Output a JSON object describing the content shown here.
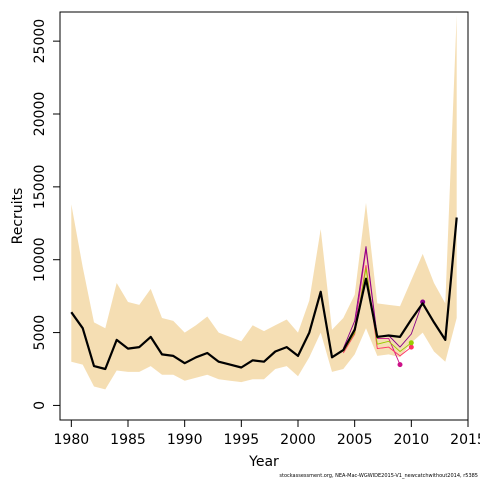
{
  "chart_data": {
    "type": "line",
    "xlabel": "Year",
    "ylabel": "Recruits",
    "xlim": [
      1979,
      2015
    ],
    "ylim": [
      -1000,
      27000
    ],
    "x_ticks": [
      1980,
      1985,
      1990,
      1995,
      2000,
      2005,
      2010,
      2015
    ],
    "y_ticks": [
      0,
      5000,
      10000,
      15000,
      20000,
      25000
    ],
    "x_tick_labels": [
      "1980",
      "1985",
      "1990",
      "1995",
      "2000",
      "2005",
      "2010",
      "2015"
    ],
    "y_tick_labels": [
      "0",
      "5000",
      "10000",
      "15000",
      "20000",
      "25000"
    ],
    "footnote": "stockassessment.org, NEA-Mac-WGWIDE2015-V1_newcatchwithout2014, r5385",
    "colors": {
      "band": "#F5DEB3",
      "main": "#000000",
      "retro1": "#CC1188",
      "retro2": "#880088",
      "retro3": "#FF3366",
      "retro4": "#99CC00",
      "axis": "#000000"
    },
    "band": {
      "x": [
        1980,
        1981,
        1982,
        1983,
        1984,
        1985,
        1986,
        1987,
        1988,
        1989,
        1990,
        1991,
        1992,
        1993,
        1994,
        1995,
        1996,
        1997,
        1998,
        1999,
        2000,
        2001,
        2002,
        2003,
        2004,
        2005,
        2006,
        2007,
        2008,
        2009,
        2010,
        2011,
        2012,
        2013,
        2014
      ],
      "lower": [
        3000,
        2800,
        1300,
        1100,
        2400,
        2300,
        2300,
        2700,
        2100,
        2100,
        1700,
        1900,
        2100,
        1800,
        1700,
        1600,
        1800,
        1800,
        2500,
        2700,
        2000,
        3300,
        5000,
        2300,
        2500,
        3500,
        5300,
        3400,
        3500,
        3300,
        4300,
        5000,
        3700,
        3000,
        6000
      ],
      "upper": [
        13800,
        9500,
        5700,
        5300,
        8400,
        7100,
        6900,
        8000,
        6000,
        5800,
        5000,
        5500,
        6100,
        5000,
        4700,
        4400,
        5500,
        5100,
        5500,
        5900,
        5000,
        7200,
        12100,
        5200,
        6000,
        7600,
        13900,
        7000,
        6900,
        6800,
        8600,
        10400,
        8400,
        7000,
        26800
      ]
    },
    "series": [
      {
        "role": "main",
        "x": [
          1980,
          1981,
          1982,
          1983,
          1984,
          1985,
          1986,
          1987,
          1988,
          1989,
          1990,
          1991,
          1992,
          1993,
          1994,
          1995,
          1996,
          1997,
          1998,
          1999,
          2000,
          2001,
          2002,
          2003,
          2004,
          2005,
          2006,
          2007,
          2008,
          2009,
          2010,
          2011,
          2012,
          2013,
          2014
        ],
        "values": [
          6400,
          5300,
          2700,
          2500,
          4500,
          3900,
          4000,
          4700,
          3500,
          3400,
          2900,
          3300,
          3600,
          3000,
          2800,
          2600,
          3100,
          3000,
          3700,
          4000,
          3400,
          5000,
          7800,
          3300,
          3800,
          5200,
          8700,
          4700,
          4800,
          4700,
          5900,
          7000,
          5700,
          4500,
          12900
        ]
      },
      {
        "role": "retro1",
        "x": [
          2004,
          2005,
          2006,
          2007,
          2008,
          2009
        ],
        "values": [
          3800,
          5300,
          10700,
          4600,
          4600,
          2800
        ]
      },
      {
        "role": "retro2",
        "x": [
          2004,
          2005,
          2006,
          2007,
          2008,
          2009,
          2010,
          2011
        ],
        "values": [
          3900,
          5800,
          10900,
          4700,
          4800,
          4000,
          4900,
          7100
        ]
      },
      {
        "role": "retro3",
        "x": [
          2004,
          2005,
          2006,
          2007,
          2008,
          2009,
          2010
        ],
        "values": [
          3600,
          4900,
          9600,
          3900,
          4000,
          3400,
          4000
        ]
      },
      {
        "role": "retro4",
        "x": [
          2004,
          2005,
          2006,
          2007,
          2008,
          2009,
          2010
        ],
        "values": [
          3700,
          5000,
          9400,
          4200,
          4400,
          3700,
          4300
        ]
      }
    ]
  }
}
